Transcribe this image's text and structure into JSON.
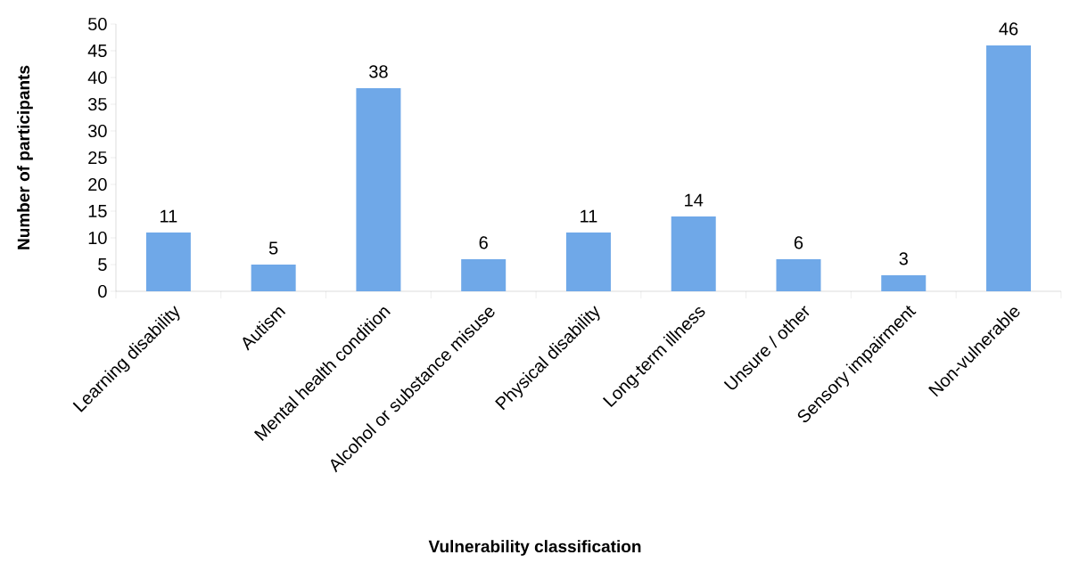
{
  "chart_data": {
    "type": "bar",
    "xlabel": "Vulnerability classification",
    "ylabel": "Number of participants",
    "categories": [
      "Learning disability",
      "Autism",
      "Mental health condition",
      "Alcohol or substance misuse",
      "Physical disability",
      "Long-term illness",
      "Unsure / other",
      "Sensory impairment",
      "Non-vulnerable"
    ],
    "values": [
      11,
      5,
      38,
      6,
      11,
      14,
      6,
      3,
      46
    ],
    "color": "#6fa8e8",
    "ylim": [
      0,
      50
    ],
    "yticks": [
      0,
      5,
      10,
      15,
      20,
      25,
      30,
      35,
      40,
      45,
      50
    ],
    "data_labels": true
  }
}
